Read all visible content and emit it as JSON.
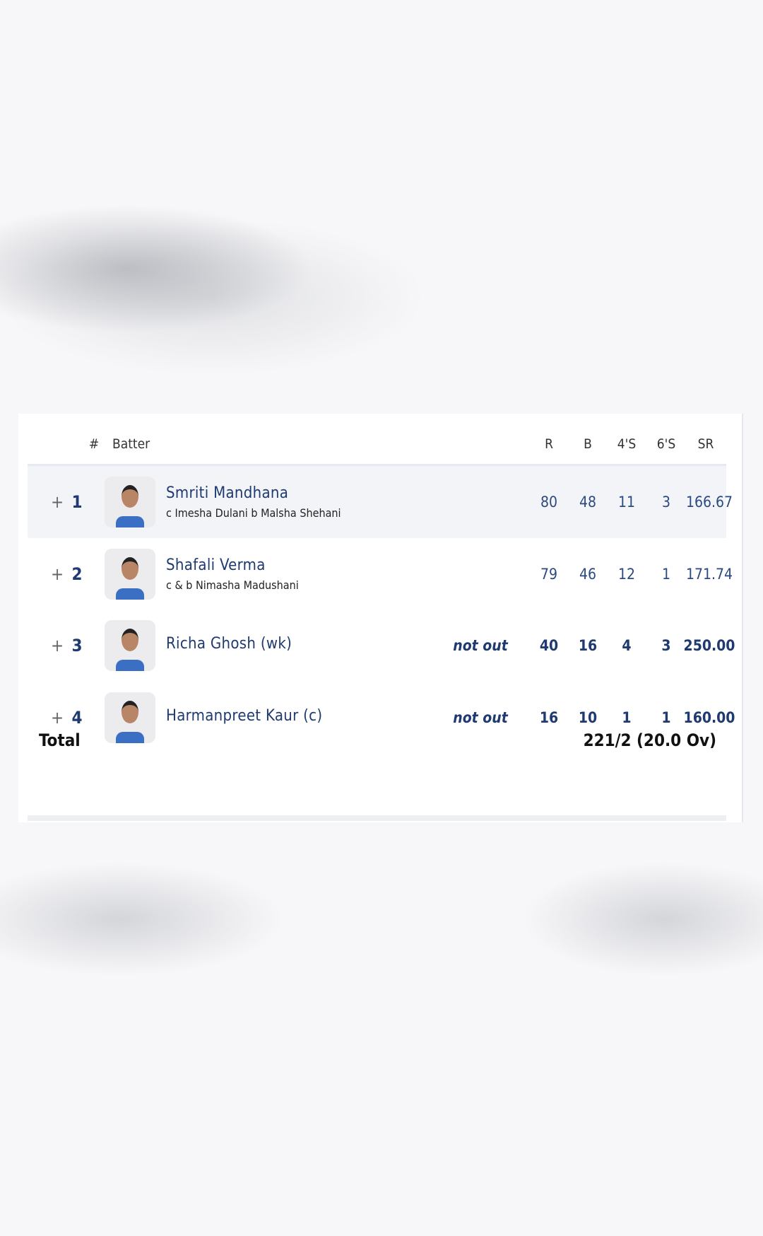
{
  "headers": {
    "num": "#",
    "batter": "Batter",
    "r": "R",
    "b": "B",
    "fours": "4'S",
    "sixes": "6'S",
    "sr": "SR"
  },
  "expand_symbol": "+",
  "batters": [
    {
      "pos": "1",
      "name": "Smriti Mandhana",
      "dismissal": "c Imesha Dulani b Malsha Shehani",
      "status": "",
      "r": "80",
      "b": "48",
      "fours": "11",
      "sixes": "3",
      "sr": "166.67"
    },
    {
      "pos": "2",
      "name": "Shafali Verma",
      "dismissal": "c & b Nimasha Madushani",
      "status": "",
      "r": "79",
      "b": "46",
      "fours": "12",
      "sixes": "1",
      "sr": "171.74"
    },
    {
      "pos": "3",
      "name": "Richa Ghosh (wk)",
      "dismissal": "",
      "status": "not out",
      "r": "40",
      "b": "16",
      "fours": "4",
      "sixes": "3",
      "sr": "250.00"
    },
    {
      "pos": "4",
      "name": "Harmanpreet Kaur (c)",
      "dismissal": "",
      "status": "not out",
      "r": "16",
      "b": "10",
      "fours": "1",
      "sixes": "1",
      "sr": "160.00"
    }
  ],
  "total": {
    "label": "Total",
    "score": "221/2 (20.0 Ov)"
  }
}
